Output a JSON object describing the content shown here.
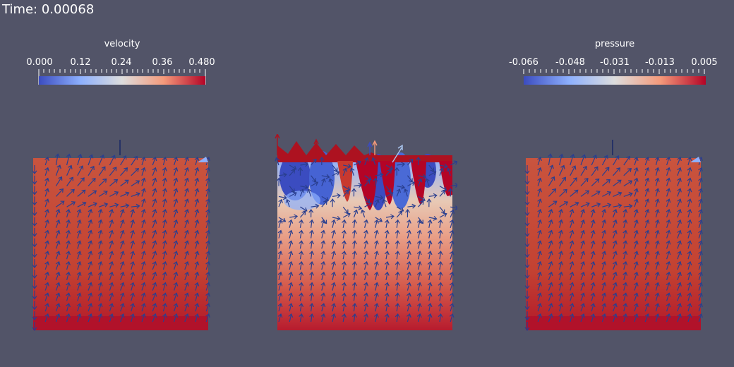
{
  "time_label": "Time: 0.00068",
  "colorbars": [
    {
      "title": "velocity",
      "ticks": [
        "0.000",
        "0.12",
        "0.24",
        "0.36",
        "0.480"
      ],
      "colors": [
        "#3b4cc0",
        "#8db0fe",
        "#dddddd",
        "#f49a7b",
        "#b40426"
      ]
    },
    {
      "title": "pressure",
      "ticks": [
        "-0.066",
        "-0.048",
        "-0.031",
        "-0.013",
        "0.005"
      ],
      "colors": [
        "#3b4cc0",
        "#8db0fe",
        "#dddddd",
        "#f49a7b",
        "#b40426"
      ]
    }
  ],
  "panels": [
    {
      "name": "left-velocity-field",
      "fill": "#c84a36"
    },
    {
      "name": "center-pressure-field",
      "fill": "#d9907a"
    },
    {
      "name": "right-velocity-field",
      "fill": "#c84a36"
    }
  ],
  "colors": {
    "background": "#525468",
    "arrow": "#2a3f8f",
    "field_red": "#c84a36",
    "field_dark_red": "#ad1220",
    "field_blue": "#3b4cc0"
  }
}
